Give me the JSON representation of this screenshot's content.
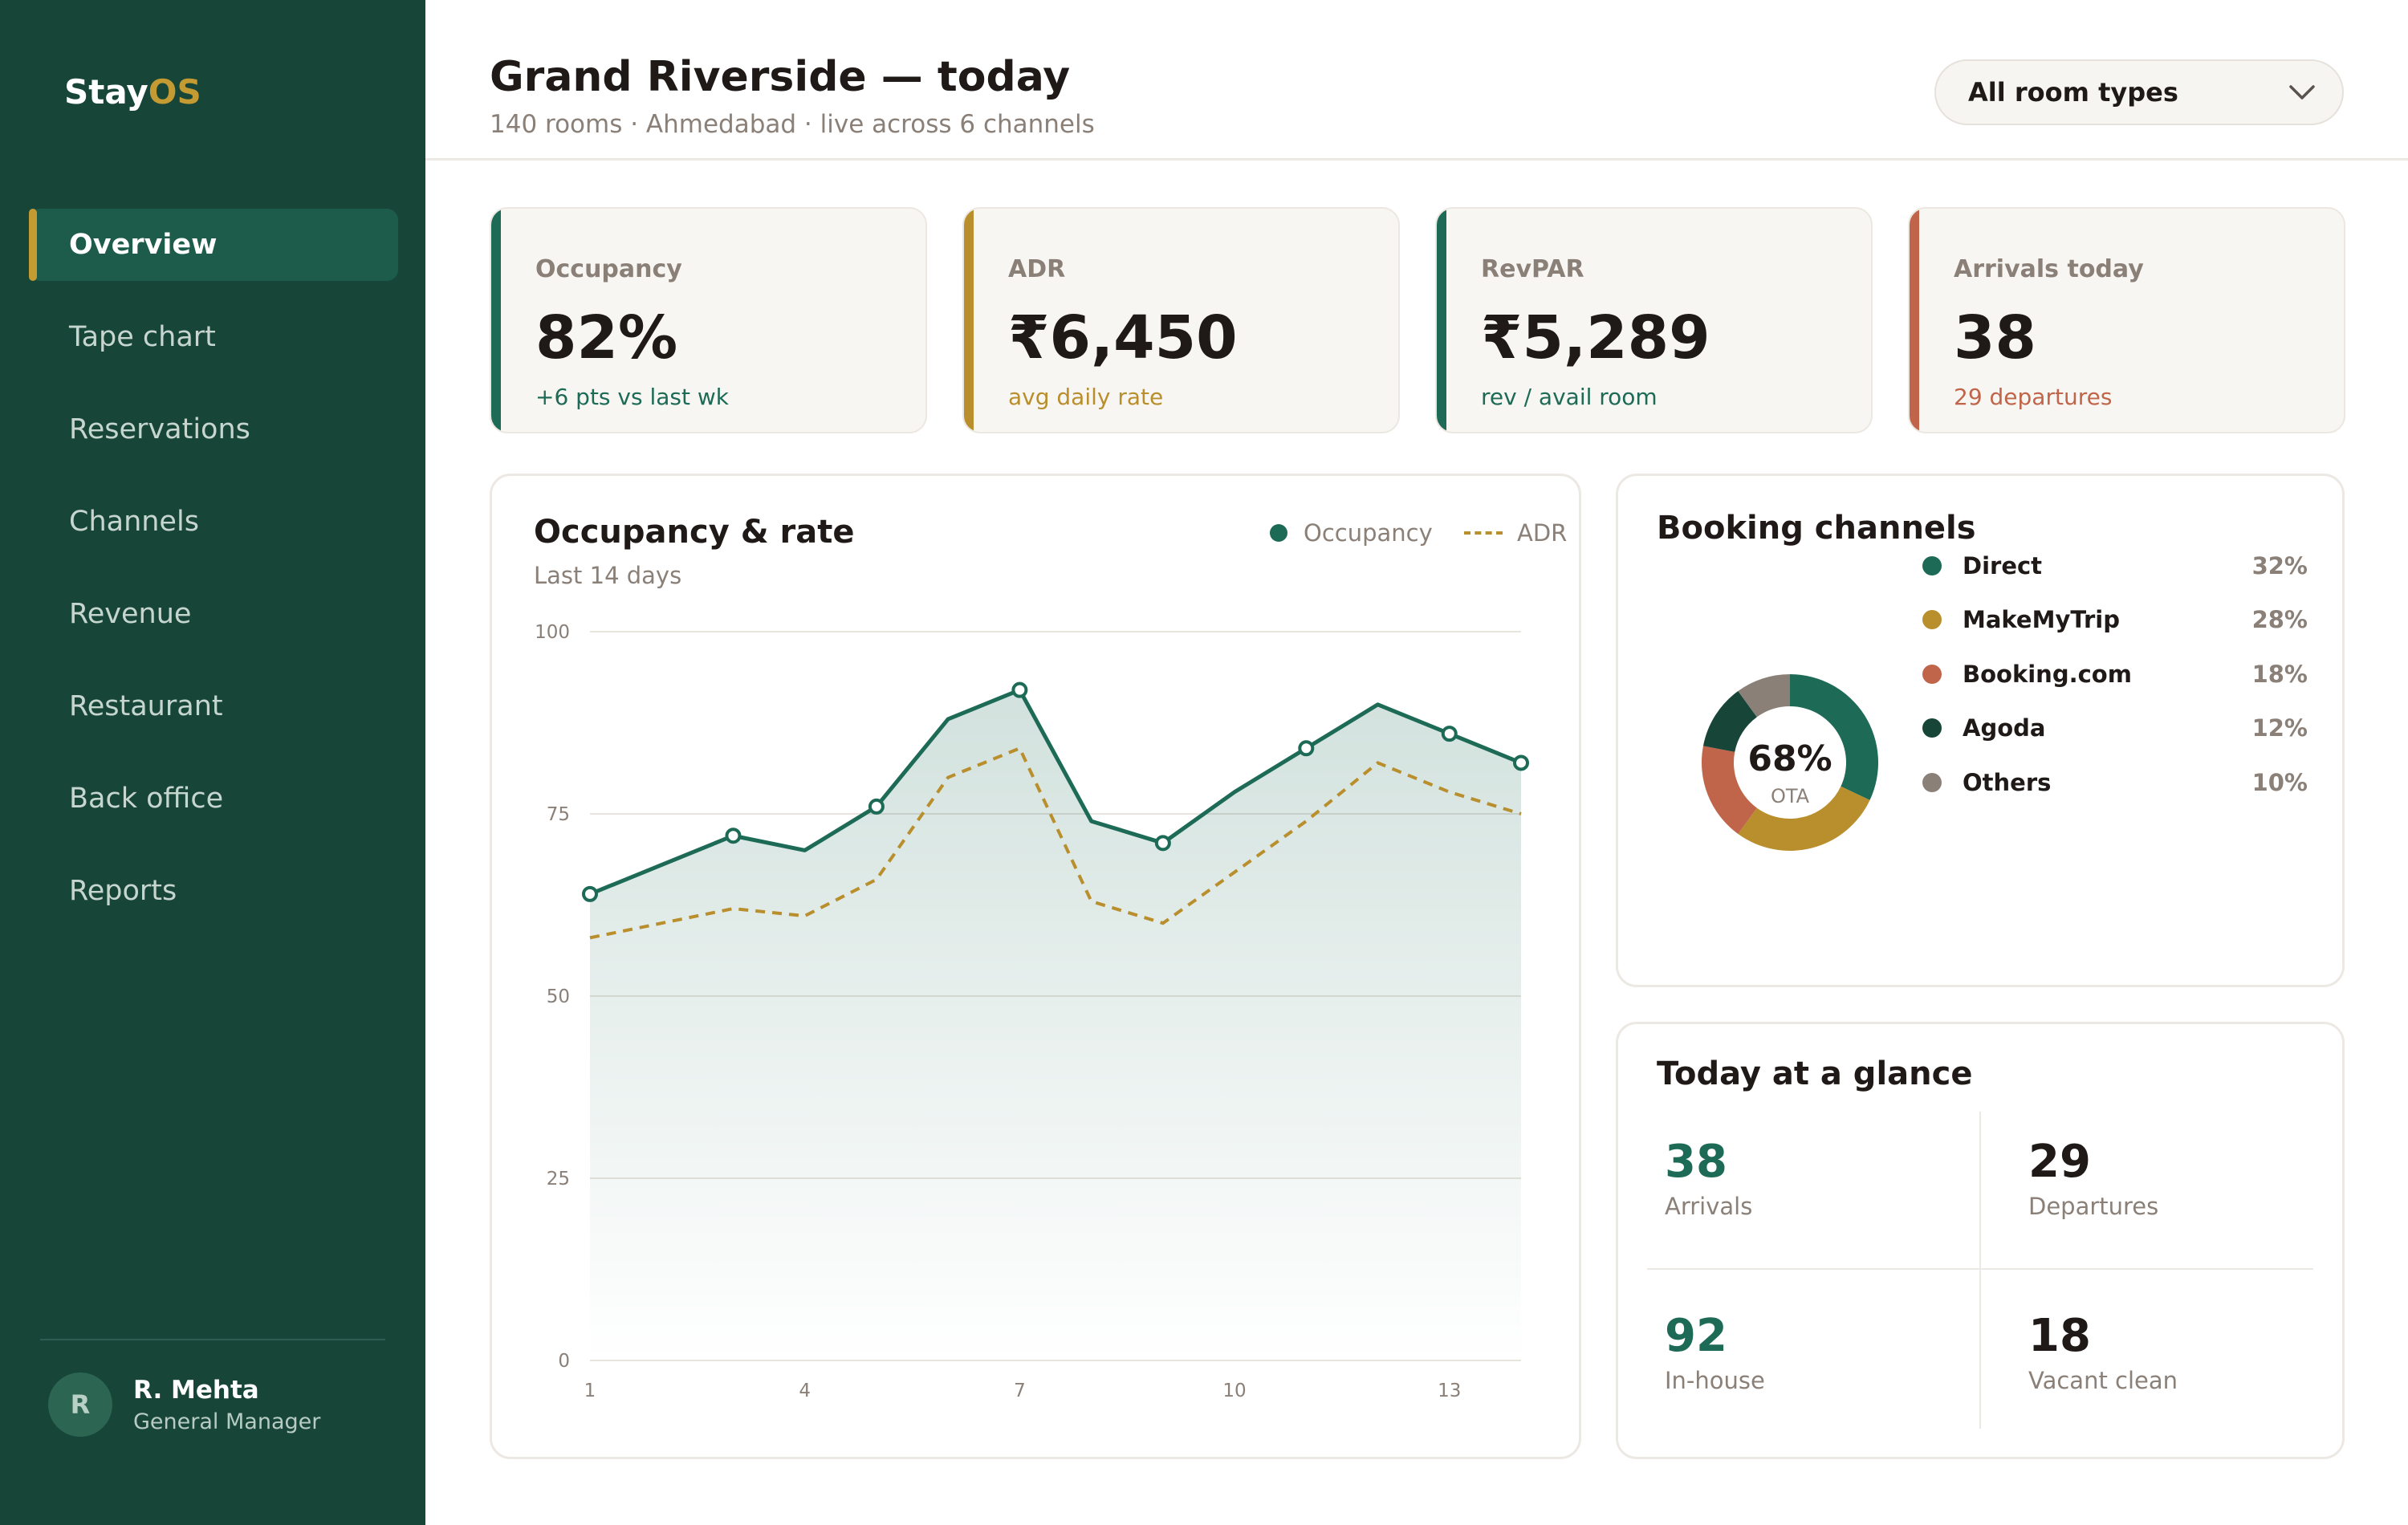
{
  "app": {
    "name_main": "Stay",
    "name_accent": "OS"
  },
  "sidebar": {
    "items": [
      {
        "label": "Overview",
        "active": true
      },
      {
        "label": "Tape chart"
      },
      {
        "label": "Reservations"
      },
      {
        "label": "Channels"
      },
      {
        "label": "Revenue"
      },
      {
        "label": "Restaurant"
      },
      {
        "label": "Back office"
      },
      {
        "label": "Reports"
      }
    ],
    "user": {
      "initial": "R",
      "name": "R. Mehta",
      "role": "General Manager"
    }
  },
  "header": {
    "title": "Grand Riverside — today",
    "subtitle": "140 rooms · Ahmedabad · live across 6 channels",
    "filter": {
      "selected": "All room types",
      "icon": "chevron-down-icon"
    }
  },
  "kpis": [
    {
      "label": "Occupancy",
      "value": "82%",
      "sub": "+6 pts vs last wk",
      "accent": "#1d6b56"
    },
    {
      "label": "ADR",
      "value": "₹6,450",
      "sub": "avg daily rate",
      "accent": "#b98e2c"
    },
    {
      "label": "RevPAR",
      "value": "₹5,289",
      "sub": "rev / avail room",
      "accent": "#1d6b56"
    },
    {
      "label": "Arrivals today",
      "value": "38",
      "sub": "29 departures",
      "accent": "#c0654a"
    }
  ],
  "occupancy_panel": {
    "title": "Occupancy & rate",
    "subtitle": "Last 14 days",
    "legend": {
      "occupancy": "Occupancy",
      "adr": "ADR"
    }
  },
  "channels_panel": {
    "title": "Booking channels",
    "center_value": "68%",
    "center_label": "OTA",
    "items": [
      {
        "name": "Direct",
        "pct": "32%",
        "value": 32,
        "color": "#1d6b56"
      },
      {
        "name": "MakeMyTrip",
        "pct": "28%",
        "value": 28,
        "color": "#b98e2c"
      },
      {
        "name": "Booking.com",
        "pct": "18%",
        "value": 18,
        "color": "#c0654a"
      },
      {
        "name": "Agoda",
        "pct": "12%",
        "value": 12,
        "color": "#174639"
      },
      {
        "name": "Others",
        "pct": "10%",
        "value": 10,
        "color": "#8a8078"
      }
    ]
  },
  "glance_panel": {
    "title": "Today at a glance",
    "cells": [
      {
        "value": "38",
        "label": "Arrivals",
        "color": "#1d6b56"
      },
      {
        "value": "29",
        "label": "Departures",
        "color": "#1f1a17"
      },
      {
        "value": "92",
        "label": "In-house",
        "color": "#1d6b56"
      },
      {
        "value": "18",
        "label": "Vacant clean",
        "color": "#1f1a17"
      }
    ]
  },
  "chart_data": {
    "type": "line",
    "title": "Occupancy & rate",
    "subtitle": "Last 14 days",
    "x": [
      1,
      2,
      3,
      4,
      5,
      6,
      7,
      8,
      9,
      10,
      11,
      12,
      13,
      14
    ],
    "x_ticks": [
      1,
      4,
      7,
      10,
      13
    ],
    "y_ticks": [
      0,
      25,
      50,
      75,
      100
    ],
    "ylim": [
      0,
      100
    ],
    "grid": true,
    "legend_position": "top-right",
    "series": [
      {
        "name": "Occupancy",
        "style": "solid-area",
        "color": "#1d6b56",
        "values": [
          64,
          68,
          72,
          70,
          76,
          88,
          92,
          74,
          71,
          78,
          84,
          90,
          86,
          82
        ],
        "markers_at": [
          1,
          3,
          5,
          7,
          9,
          11,
          13,
          14
        ]
      },
      {
        "name": "ADR",
        "style": "dashed",
        "color": "#b98e2c",
        "values": [
          58,
          60,
          62,
          61,
          66,
          80,
          84,
          63,
          60,
          67,
          74,
          82,
          78,
          75
        ]
      }
    ]
  }
}
